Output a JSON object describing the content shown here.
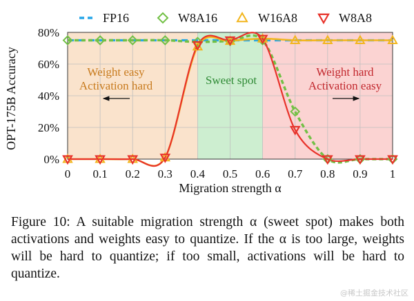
{
  "chart_data": {
    "type": "line",
    "ylabel": "OPT-175B Accuracy",
    "xlabel": "Migration strength α",
    "x": [
      0,
      0.1,
      0.2,
      0.3,
      0.4,
      0.5,
      0.6,
      0.7,
      0.8,
      0.9,
      1
    ],
    "xticks": [
      "0",
      "0.1",
      "0.2",
      "0.3",
      "0.4",
      "0.5",
      "0.6",
      "0.7",
      "0.8",
      "0.9",
      "1"
    ],
    "yticks": [
      "0%",
      "20%",
      "40%",
      "60%",
      "80%"
    ],
    "ylim": [
      0,
      80
    ],
    "xlim": [
      0,
      1
    ],
    "series": [
      {
        "name": "FP16",
        "values": [
          75,
          75,
          75,
          75,
          75,
          75,
          75,
          75,
          75,
          75,
          75
        ],
        "color": "#27a6e8"
      },
      {
        "name": "W8A16",
        "values": [
          75,
          75,
          75,
          75,
          74,
          74.5,
          75,
          30,
          0,
          0,
          0
        ],
        "color": "#72c045"
      },
      {
        "name": "W16A8",
        "values": [
          0,
          0,
          0,
          1,
          71,
          74.5,
          76,
          75,
          75,
          75,
          75
        ],
        "color": "#f2b51c"
      },
      {
        "name": "W8A8",
        "values": [
          0,
          0,
          0,
          1,
          72,
          75,
          76,
          18.5,
          0,
          0,
          0
        ],
        "color": "#e8322a"
      }
    ],
    "regions": [
      {
        "from": 0,
        "to": 0.4,
        "color": "#fae3cc",
        "label_lines": [
          "Weight easy",
          "Activation hard"
        ],
        "label_color": "#c77a1d",
        "arrow": "left"
      },
      {
        "from": 0.4,
        "to": 0.6,
        "color": "#cdeed0",
        "label_lines": [
          "Sweet spot"
        ],
        "label_color": "#2f8a35",
        "arrow": "none"
      },
      {
        "from": 0.6,
        "to": 1,
        "color": "#fbd3d2",
        "label_lines": [
          "Weight hard",
          "Activation easy"
        ],
        "label_color": "#c1272d",
        "arrow": "right"
      }
    ],
    "legend_position": "top"
  },
  "caption": "Figure 10: A suitable migration strength α (sweet spot) makes both activations and weights easy to quantize. If the α is too large, weights will be hard to quantize; if too small, activations will be hard to quantize.",
  "watermark": "@稀土掘金技术社区"
}
